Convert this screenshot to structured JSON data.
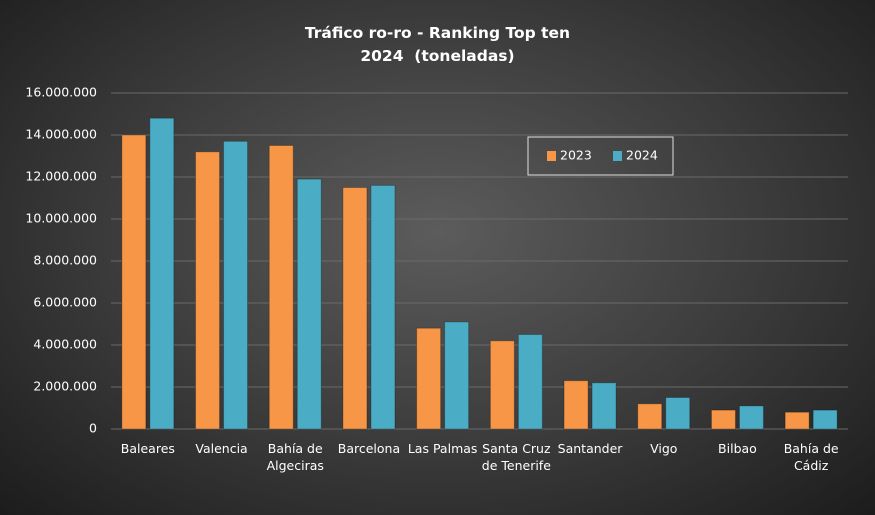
{
  "chart_data": {
    "type": "bar",
    "title": [
      "Tráfico ro-ro - Ranking Top ten",
      "2024  (toneladas)"
    ],
    "categories": [
      "Baleares",
      "Valencia",
      "Bahía de Algeciras",
      "Barcelona",
      "Las Palmas",
      "Santa Cruz de Tenerife",
      "Santander",
      "Vigo",
      "Bilbao",
      "Bahía de Cádiz"
    ],
    "series": [
      {
        "name": "2023",
        "color": "#f79646",
        "values": [
          14000000,
          13200000,
          13500000,
          11500000,
          4800000,
          4200000,
          2300000,
          1200000,
          900000,
          800000
        ]
      },
      {
        "name": "2024",
        "color": "#4bacc6",
        "values": [
          14800000,
          13700000,
          11900000,
          11600000,
          5100000,
          4500000,
          2200000,
          1500000,
          1100000,
          900000
        ]
      }
    ],
    "ylim": [
      0,
      16000000
    ],
    "yticks": [
      0,
      {
        "value": 2000000,
        "label": "2.000.000"
      },
      {
        "value": 4000000,
        "label": "4.000.000"
      },
      {
        "value": 6000000,
        "label": "6.000.000"
      },
      {
        "value": 8000000,
        "label": "8.000.000"
      },
      {
        "value": 10000000,
        "label": "10.000.000"
      },
      {
        "value": 12000000,
        "label": "12.000.000"
      },
      {
        "value": 14000000,
        "label": "14.000.000"
      },
      {
        "value": 16000000,
        "label": "16.000.000"
      }
    ],
    "grid": true,
    "legend": "top-right"
  }
}
